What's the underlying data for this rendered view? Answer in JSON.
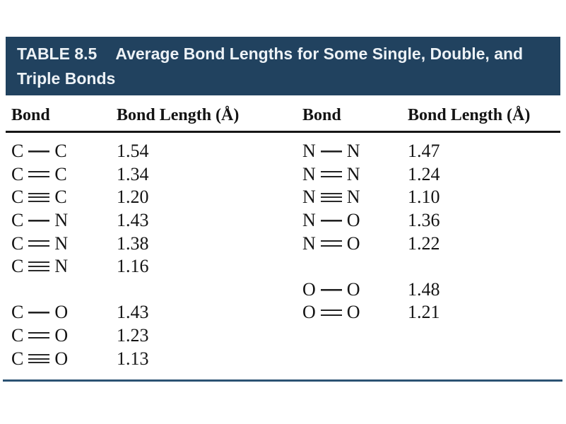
{
  "colors": {
    "header_bg": "#21425f",
    "header_text": "#edf2f6",
    "divider_black": "#161616",
    "bottom_rule_blue": "#2b5273",
    "body_text": "#141414"
  },
  "header": {
    "table_label": "TABLE 8.5",
    "title": "Average Bond Lengths for Some Single, Double, and Triple Bonds"
  },
  "columns": [
    "Bond",
    "Bond Length (Å)",
    "Bond",
    "Bond Length (Å)"
  ],
  "rows": [
    {
      "left": {
        "atom1": "C",
        "bond": "single",
        "atom2": "C",
        "length": "1.54"
      },
      "right": {
        "atom1": "N",
        "bond": "single",
        "atom2": "N",
        "length": "1.47"
      }
    },
    {
      "left": {
        "atom1": "C",
        "bond": "double",
        "atom2": "C",
        "length": "1.34"
      },
      "right": {
        "atom1": "N",
        "bond": "double",
        "atom2": "N",
        "length": "1.24"
      }
    },
    {
      "left": {
        "atom1": "C",
        "bond": "triple",
        "atom2": "C",
        "length": "1.20"
      },
      "right": {
        "atom1": "N",
        "bond": "triple",
        "atom2": "N",
        "length": "1.10"
      }
    },
    {
      "left": {
        "atom1": "C",
        "bond": "single",
        "atom2": "N",
        "length": "1.43"
      },
      "right": {
        "atom1": "N",
        "bond": "single",
        "atom2": "O",
        "length": "1.36"
      }
    },
    {
      "left": {
        "atom1": "C",
        "bond": "double",
        "atom2": "N",
        "length": "1.38"
      },
      "right": {
        "atom1": "N",
        "bond": "double",
        "atom2": "O",
        "length": "1.22"
      }
    },
    {
      "left": {
        "atom1": "C",
        "bond": "triple",
        "atom2": "N",
        "length": "1.16"
      },
      "right": null
    },
    {
      "left": null,
      "right": {
        "atom1": "O",
        "bond": "single",
        "atom2": "O",
        "length": "1.48"
      }
    },
    {
      "left": {
        "atom1": "C",
        "bond": "single",
        "atom2": "O",
        "length": "1.43"
      },
      "right": {
        "atom1": "O",
        "bond": "double",
        "atom2": "O",
        "length": "1.21"
      }
    },
    {
      "left": {
        "atom1": "C",
        "bond": "double",
        "atom2": "O",
        "length": "1.23"
      },
      "right": null
    },
    {
      "left": {
        "atom1": "C",
        "bond": "triple",
        "atom2": "O",
        "length": "1.13"
      },
      "right": null
    }
  ]
}
